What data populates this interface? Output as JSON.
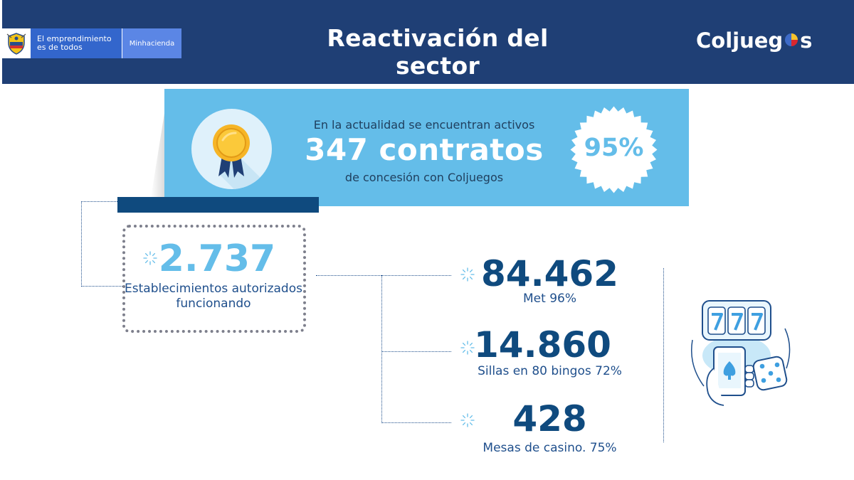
{
  "header": {
    "gov_slogan": "El emprendimiento es de todos",
    "gov_ministry": "Minhacienda",
    "title": "Reactivación del sector",
    "brand": {
      "prefix": "Coljueg",
      "suffix": "s"
    }
  },
  "banner": {
    "line1": "En la actualidad se encuentran activos",
    "highlight": "347 contratos",
    "line3": "de concesión con Coljuegos",
    "percent": "95%"
  },
  "establishments": {
    "value": "2.737",
    "label": "Establecimientos autorizados funcionando"
  },
  "stats": [
    {
      "value": "84.462",
      "label": "Met 96%"
    },
    {
      "value": "14.860",
      "label": "Sillas en 80 bingos 72%"
    },
    {
      "value": "428",
      "label": "Mesas de casino. 75%"
    }
  ],
  "icons": {
    "medal": "award-medal-icon",
    "seal": "badge-seal-icon",
    "spark": "sparkle-icon",
    "casino": "slot-machine-phone-dice-icon"
  },
  "colors": {
    "header": "#1f3f75",
    "banner": "#64bde9",
    "navy": "#0f4a7e",
    "accent_light": "#64bde9"
  }
}
